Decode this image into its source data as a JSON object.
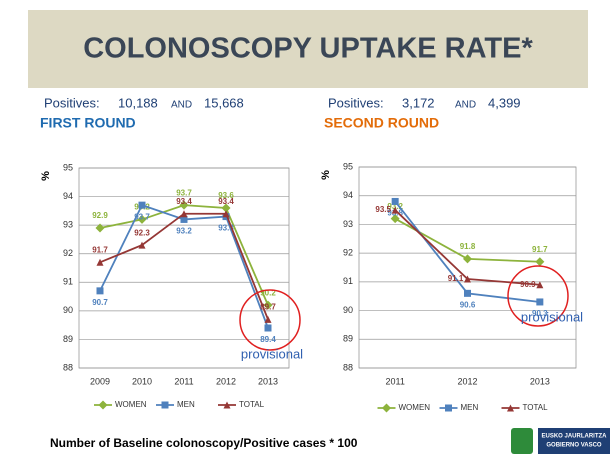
{
  "title": "COLONOSCOPY UPTAKE RATE*",
  "footer": "Number of Baseline colonoscopy/Positive cases * 100",
  "logo": {
    "line1": "EUSKO JAURLARITZA",
    "line2": "GOBIERNO VASCO"
  },
  "chart_data": [
    {
      "type": "line",
      "title": "FIRST ROUND",
      "title_color": "#1f6bb0",
      "positives": {
        "label": "Positives:",
        "first": "10,188",
        "joiner": "AND",
        "second": "15,668"
      },
      "ylabel": "%",
      "annotation": "provisional",
      "categories": [
        "2009",
        "2010",
        "2011",
        "2012",
        "2013"
      ],
      "ylim": [
        88,
        95
      ],
      "yticks": [
        88,
        89,
        90,
        91,
        92,
        93,
        94,
        95
      ],
      "grid": true,
      "series": [
        {
          "name": "WOMEN",
          "color": "#8db33c",
          "marker": "diamond",
          "values": [
            92.9,
            93.2,
            93.7,
            93.6,
            90.2
          ]
        },
        {
          "name": "MEN",
          "color": "#4f81bd",
          "marker": "square",
          "values": [
            90.7,
            93.7,
            93.2,
            93.3,
            89.4
          ]
        },
        {
          "name": "TOTAL",
          "color": "#953735",
          "marker": "triangle",
          "values": [
            91.7,
            92.3,
            93.4,
            93.4,
            89.7
          ]
        }
      ]
    },
    {
      "type": "line",
      "title": "SECOND ROUND",
      "title_color": "#e36c09",
      "positives": {
        "label": "Positives:",
        "first": "3,172",
        "joiner": "AND",
        "second": "4,399"
      },
      "ylabel": "%",
      "annotation": "provisional",
      "categories": [
        "2011",
        "2012",
        "2013"
      ],
      "ylim": [
        88,
        95
      ],
      "yticks": [
        88,
        89,
        90,
        91,
        92,
        93,
        94,
        95
      ],
      "grid": true,
      "series": [
        {
          "name": "WOMEN",
          "color": "#8db33c",
          "marker": "diamond",
          "values": [
            93.2,
            91.8,
            91.7
          ]
        },
        {
          "name": "MEN",
          "color": "#4f81bd",
          "marker": "square",
          "values": [
            93.8,
            90.6,
            90.3
          ]
        },
        {
          "name": "TOTAL",
          "color": "#953735",
          "marker": "triangle",
          "values": [
            93.5,
            91.1,
            90.9
          ]
        }
      ]
    }
  ]
}
